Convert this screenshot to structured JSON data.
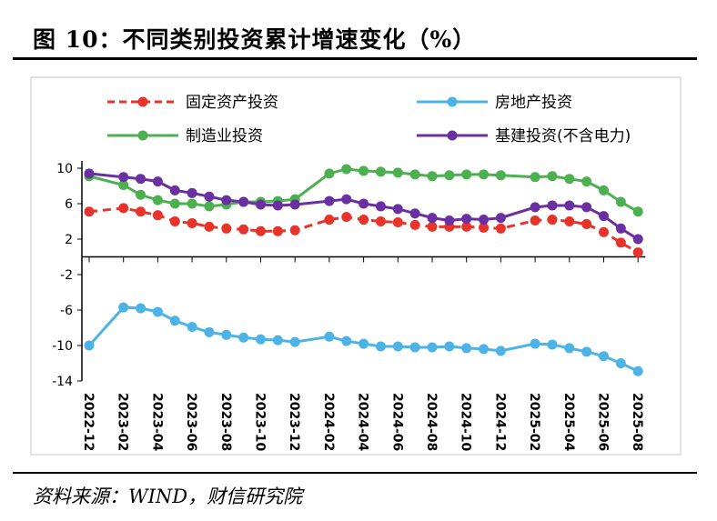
{
  "title": "图 10：不同类别投资累计增速变化（%）",
  "source": "资料来源：WIND，财信研究院",
  "chart_data": {
    "type": "line",
    "title": "",
    "xlabel": "",
    "ylabel": "",
    "ylim": [
      -14,
      10
    ],
    "yticks": [
      10,
      6,
      2,
      -2,
      -6,
      -10,
      -14
    ],
    "legend_position": "top",
    "x": [
      "2022-12",
      "2023-02",
      "2023-03",
      "2023-04",
      "2023-05",
      "2023-06",
      "2023-07",
      "2023-08",
      "2023-09",
      "2023-10",
      "2023-11",
      "2023-12",
      "2024-02",
      "2024-03",
      "2024-04",
      "2024-05",
      "2024-06",
      "2024-07",
      "2024-08",
      "2024-09",
      "2024-10",
      "2024-11",
      "2024-12",
      "2025-02",
      "2025-03",
      "2025-04",
      "2025-05",
      "2025-06",
      "2025-07",
      "2025-08"
    ],
    "xtick_labels": [
      "2022-12",
      "2023-02",
      "2023-04",
      "2023-06",
      "2023-08",
      "2023-10",
      "2023-12",
      "2024-02",
      "2024-04",
      "2024-06",
      "2024-08",
      "2024-10",
      "2024-12",
      "2025-02",
      "2025-04",
      "2025-06",
      "2025-08"
    ],
    "series": [
      {
        "name": "固定资产投资",
        "color": "#e8332a",
        "dashed": true,
        "values": [
          5.1,
          5.5,
          5.1,
          4.7,
          4.0,
          3.8,
          3.4,
          3.2,
          3.1,
          2.9,
          2.9,
          3.0,
          4.2,
          4.5,
          4.2,
          4.0,
          3.9,
          3.6,
          3.4,
          3.4,
          3.4,
          3.3,
          3.2,
          4.1,
          4.2,
          4.0,
          3.7,
          2.8,
          1.6,
          0.5
        ]
      },
      {
        "name": "房地产投资",
        "color": "#4db3e6",
        "dashed": false,
        "values": [
          -10.0,
          -5.7,
          -5.8,
          -6.2,
          -7.2,
          -7.9,
          -8.5,
          -8.8,
          -9.1,
          -9.3,
          -9.4,
          -9.6,
          -9.0,
          -9.5,
          -9.8,
          -10.1,
          -10.1,
          -10.2,
          -10.2,
          -10.1,
          -10.3,
          -10.4,
          -10.6,
          -9.8,
          -9.9,
          -10.3,
          -10.7,
          -11.2,
          -12.0,
          -12.9
        ]
      },
      {
        "name": "制造业投资",
        "color": "#4caf50",
        "dashed": false,
        "values": [
          9.1,
          8.1,
          7.0,
          6.4,
          6.0,
          6.0,
          5.7,
          5.9,
          6.2,
          6.2,
          6.3,
          6.5,
          9.4,
          9.9,
          9.7,
          9.6,
          9.5,
          9.3,
          9.1,
          9.2,
          9.3,
          9.3,
          9.2,
          9.0,
          9.1,
          8.8,
          8.5,
          7.5,
          6.2,
          5.1
        ]
      },
      {
        "name": "基建投资(不含电力)",
        "color": "#6a2fa0",
        "dashed": false,
        "values": [
          9.4,
          9.0,
          8.8,
          8.5,
          7.5,
          7.2,
          6.8,
          6.4,
          6.2,
          5.9,
          5.8,
          5.9,
          6.3,
          6.5,
          6.0,
          5.7,
          5.4,
          4.9,
          4.4,
          4.1,
          4.3,
          4.2,
          4.4,
          5.6,
          5.8,
          5.8,
          5.6,
          4.6,
          3.2,
          2.0
        ]
      }
    ]
  }
}
